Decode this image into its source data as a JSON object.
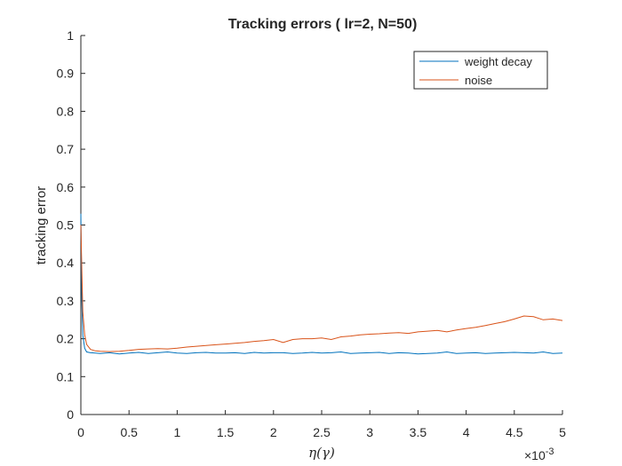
{
  "chart_data": {
    "type": "line",
    "title": "Tracking errors ( lr=2, N=50)",
    "xlabel": "η(γ)",
    "ylabel": "tracking error",
    "x_exponent_label": "×10⁻³",
    "x_exponent_base": "×10",
    "x_exponent_power": "-3",
    "xlim": [
      0,
      5
    ],
    "ylim": [
      0,
      1
    ],
    "xticks": [
      0,
      0.5,
      1,
      1.5,
      2,
      2.5,
      3,
      3.5,
      4,
      4.5,
      5
    ],
    "xtick_labels": [
      "0",
      "0.5",
      "1",
      "1.5",
      "2",
      "2.5",
      "3",
      "3.5",
      "4",
      "4.5",
      "5"
    ],
    "yticks": [
      0,
      0.1,
      0.2,
      0.3,
      0.4,
      0.5,
      0.6,
      0.7,
      0.8,
      0.9,
      1
    ],
    "ytick_labels": [
      "0",
      "0.1",
      "0.2",
      "0.3",
      "0.4",
      "0.5",
      "0.6",
      "0.7",
      "0.8",
      "0.9",
      "1"
    ],
    "grid": false,
    "legend_position": "top-right",
    "series": [
      {
        "name": "weight decay",
        "color": "#0072BD",
        "x": [
          0,
          0.01,
          0.02,
          0.04,
          0.06,
          0.1,
          0.15,
          0.2,
          0.3,
          0.4,
          0.5,
          0.6,
          0.7,
          0.8,
          0.9,
          1.0,
          1.1,
          1.2,
          1.3,
          1.4,
          1.5,
          1.6,
          1.7,
          1.8,
          1.9,
          2.0,
          2.1,
          2.2,
          2.3,
          2.4,
          2.5,
          2.6,
          2.7,
          2.8,
          2.9,
          3.0,
          3.1,
          3.2,
          3.3,
          3.4,
          3.5,
          3.6,
          3.7,
          3.8,
          3.9,
          4.0,
          4.1,
          4.2,
          4.3,
          4.4,
          4.5,
          4.6,
          4.7,
          4.8,
          4.9,
          5.0
        ],
        "y": [
          0.53,
          0.3,
          0.21,
          0.175,
          0.165,
          0.163,
          0.162,
          0.161,
          0.163,
          0.16,
          0.162,
          0.164,
          0.161,
          0.163,
          0.165,
          0.162,
          0.161,
          0.163,
          0.164,
          0.162,
          0.162,
          0.163,
          0.161,
          0.164,
          0.162,
          0.163,
          0.163,
          0.161,
          0.162,
          0.164,
          0.162,
          0.163,
          0.165,
          0.161,
          0.162,
          0.163,
          0.164,
          0.161,
          0.163,
          0.162,
          0.16,
          0.161,
          0.162,
          0.165,
          0.161,
          0.162,
          0.163,
          0.161,
          0.162,
          0.163,
          0.164,
          0.163,
          0.162,
          0.165,
          0.161,
          0.162
        ]
      },
      {
        "name": "noise",
        "color": "#D95319",
        "x": [
          0,
          0.01,
          0.02,
          0.04,
          0.06,
          0.1,
          0.15,
          0.2,
          0.3,
          0.4,
          0.5,
          0.6,
          0.7,
          0.8,
          0.9,
          1.0,
          1.1,
          1.2,
          1.3,
          1.4,
          1.5,
          1.6,
          1.7,
          1.8,
          1.9,
          2.0,
          2.1,
          2.2,
          2.3,
          2.4,
          2.5,
          2.6,
          2.7,
          2.8,
          2.9,
          3.0,
          3.1,
          3.2,
          3.3,
          3.4,
          3.5,
          3.6,
          3.7,
          3.8,
          3.9,
          4.0,
          4.1,
          4.2,
          4.3,
          4.4,
          4.5,
          4.6,
          4.7,
          4.8,
          4.9,
          5.0
        ],
        "y": [
          0.5,
          0.38,
          0.27,
          0.21,
          0.185,
          0.172,
          0.168,
          0.167,
          0.166,
          0.167,
          0.169,
          0.172,
          0.173,
          0.174,
          0.173,
          0.175,
          0.178,
          0.18,
          0.182,
          0.184,
          0.186,
          0.188,
          0.19,
          0.193,
          0.195,
          0.198,
          0.19,
          0.198,
          0.2,
          0.2,
          0.202,
          0.198,
          0.205,
          0.207,
          0.21,
          0.212,
          0.213,
          0.215,
          0.216,
          0.214,
          0.218,
          0.22,
          0.222,
          0.218,
          0.223,
          0.227,
          0.23,
          0.235,
          0.24,
          0.245,
          0.252,
          0.26,
          0.258,
          0.25,
          0.252,
          0.248
        ]
      }
    ]
  }
}
